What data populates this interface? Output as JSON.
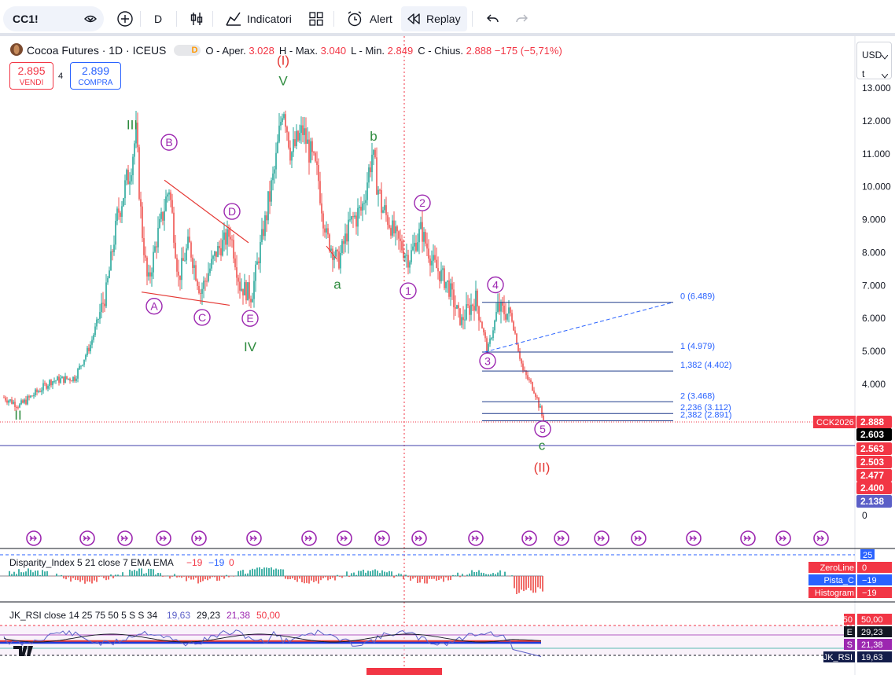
{
  "toolbar": {
    "symbol": "CC1!",
    "interval": "D",
    "indicators_label": "Indicatori",
    "alert_label": "Alert",
    "replay_label": "Replay",
    "colors": {
      "accent": "#2962ff",
      "border": "#e0e3eb"
    }
  },
  "legend": {
    "title": "Cocoa Futures · 1D · ICEUS",
    "badge": "D",
    "open_label": "O - Aper.",
    "open_value": "3.028",
    "high_label": "H - Max.",
    "high_value": "3.040",
    "low_label": "L - Min.",
    "low_value": "2.849",
    "close_label": "C - Chius.",
    "close_value": "2.888",
    "change": "−175 (−5,71%)"
  },
  "trade": {
    "sell_price": "2.895",
    "sell_label": "VENDI",
    "spread": "4",
    "buy_price": "2.899",
    "buy_label": "COMPRA"
  },
  "axis": {
    "currency": "USD",
    "unit": "t",
    "ticks": [
      {
        "label": "13.000",
        "value": 13000
      },
      {
        "label": "12.000",
        "value": 12000
      },
      {
        "label": "11.000",
        "value": 11000
      },
      {
        "label": "10.000",
        "value": 10000
      },
      {
        "label": "9.000",
        "value": 9000
      },
      {
        "label": "8.000",
        "value": 8000
      },
      {
        "label": "7.000",
        "value": 7000
      },
      {
        "label": "6.000",
        "value": 6000
      },
      {
        "label": "5.000",
        "value": 5000
      },
      {
        "label": "4.000",
        "value": 4000
      },
      {
        "label": "0",
        "value": 0
      }
    ],
    "price_tags": [
      {
        "label": "2.888",
        "value": 2888,
        "color": "#f23645",
        "name": "CCK2026"
      },
      {
        "label": "2.603",
        "value": 2603,
        "color": "#000000"
      },
      {
        "label": "2.563",
        "value": 2510,
        "color": "#f23645"
      },
      {
        "label": "2.503",
        "value": 2430,
        "color": "#f23645"
      },
      {
        "label": "2.477",
        "value": 2345,
        "color": "#f23645"
      },
      {
        "label": "2.400",
        "value": 2260,
        "color": "#f23645"
      },
      {
        "label": "2.138",
        "value": 2170,
        "color": "#5b5fc7"
      }
    ]
  },
  "chart_data": {
    "type": "candlestick",
    "y_range": [
      0,
      13000
    ],
    "close_series": [
      {
        "t": 0,
        "v": 3600
      },
      {
        "t": 20,
        "v": 3350
      },
      {
        "t": 60,
        "v": 4100
      },
      {
        "t": 90,
        "v": 4200
      },
      {
        "t": 110,
        "v": 5200
      },
      {
        "t": 130,
        "v": 6800
      },
      {
        "t": 145,
        "v": 9200
      },
      {
        "t": 160,
        "v": 10500
      },
      {
        "t": 168,
        "v": 11600
      },
      {
        "t": 175,
        "v": 8800
      },
      {
        "t": 183,
        "v": 7000
      },
      {
        "t": 195,
        "v": 8500
      },
      {
        "t": 210,
        "v": 10000
      },
      {
        "t": 222,
        "v": 7200
      },
      {
        "t": 235,
        "v": 8300
      },
      {
        "t": 250,
        "v": 6800
      },
      {
        "t": 270,
        "v": 8000
      },
      {
        "t": 288,
        "v": 8600
      },
      {
        "t": 300,
        "v": 7000
      },
      {
        "t": 315,
        "v": 6700
      },
      {
        "t": 330,
        "v": 8700
      },
      {
        "t": 345,
        "v": 10600
      },
      {
        "t": 355,
        "v": 12600
      },
      {
        "t": 365,
        "v": 11000
      },
      {
        "t": 380,
        "v": 11700
      },
      {
        "t": 400,
        "v": 10200
      },
      {
        "t": 410,
        "v": 8500
      },
      {
        "t": 425,
        "v": 7700
      },
      {
        "t": 440,
        "v": 8900
      },
      {
        "t": 455,
        "v": 9300
      },
      {
        "t": 468,
        "v": 11000
      },
      {
        "t": 480,
        "v": 9400
      },
      {
        "t": 500,
        "v": 8400
      },
      {
        "t": 515,
        "v": 7800
      },
      {
        "t": 530,
        "v": 8700
      },
      {
        "t": 545,
        "v": 7700
      },
      {
        "t": 565,
        "v": 7000
      },
      {
        "t": 580,
        "v": 5900
      },
      {
        "t": 600,
        "v": 6600
      },
      {
        "t": 615,
        "v": 5000
      },
      {
        "t": 628,
        "v": 6300
      },
      {
        "t": 645,
        "v": 6100
      },
      {
        "t": 660,
        "v": 4400
      },
      {
        "t": 675,
        "v": 3800
      },
      {
        "t": 686,
        "v": 2888
      }
    ],
    "wave_labels": [
      {
        "text": "II",
        "t": 18,
        "v": 2930,
        "color": "#2e8b3e"
      },
      {
        "text": "III",
        "t": 163,
        "v": 11750,
        "color": "#2e8b3e"
      },
      {
        "text": "IV",
        "t": 313,
        "v": 5000,
        "color": "#2e8b3e"
      },
      {
        "text": "V",
        "t": 355,
        "v": 13080,
        "color": "#2e8b3e"
      },
      {
        "text": "(I)",
        "t": 355,
        "v": 13700,
        "color": "#e53935"
      },
      {
        "text": "a",
        "t": 424,
        "v": 6900,
        "color": "#2e8b3e"
      },
      {
        "text": "b",
        "t": 470,
        "v": 11400,
        "color": "#2e8b3e"
      },
      {
        "text": "c",
        "t": 684,
        "v": 2010,
        "color": "#2e8b3e"
      },
      {
        "text": "(II)",
        "t": 684,
        "v": 1340,
        "color": "#e53935"
      }
    ],
    "circle_labels": [
      {
        "text": "A",
        "t": 191,
        "v": 6370,
        "color": "#9c27b0"
      },
      {
        "text": "B",
        "t": 210,
        "v": 11350,
        "color": "#9c27b0"
      },
      {
        "text": "C",
        "t": 252,
        "v": 6030,
        "color": "#9c27b0"
      },
      {
        "text": "D",
        "t": 290,
        "v": 9250,
        "color": "#9c27b0"
      },
      {
        "text": "E",
        "t": 313,
        "v": 6000,
        "color": "#9c27b0"
      },
      {
        "text": "1",
        "t": 514,
        "v": 6840,
        "color": "#9c27b0"
      },
      {
        "text": "2",
        "t": 532,
        "v": 9510,
        "color": "#9c27b0"
      },
      {
        "text": "3",
        "t": 615,
        "v": 4710,
        "color": "#9c27b0"
      },
      {
        "text": "4",
        "t": 625,
        "v": 7020,
        "color": "#9c27b0"
      },
      {
        "text": "5",
        "t": 685,
        "v": 2640,
        "color": "#9c27b0"
      }
    ],
    "fib_levels": [
      {
        "label": "0 (6.489)",
        "value": 6489
      },
      {
        "label": "1 (4.979)",
        "value": 4979
      },
      {
        "label": "1,382 (4.402)",
        "value": 4402
      },
      {
        "label": "2 (3.468)",
        "value": 3468
      },
      {
        "label": "2,236 (3.112)",
        "value": 3112
      },
      {
        "label": "2,382 (2.891)",
        "value": 2891
      }
    ],
    "event_markers": [
      43,
      111,
      159,
      208,
      253,
      323,
      393,
      438,
      486,
      533,
      605,
      673,
      714,
      765,
      812,
      882,
      951,
      996,
      1044
    ]
  },
  "indicators": {
    "disparity": {
      "title": "Disparity_Index 5 21 close 7 EMA EMA",
      "val1": "−19",
      "val2": "−19",
      "val3": "0",
      "top_tag": "25",
      "tags": [
        {
          "name": "ZeroLine",
          "value": "0",
          "color": "#f23645"
        },
        {
          "name": "Pista_C",
          "value": "−19",
          "color": "#2962ff"
        },
        {
          "name": "Histogram",
          "value": "−19",
          "color": "#f23645"
        }
      ]
    },
    "rsi": {
      "title": "JK_RSI close 14 25 75 50 5 S S 34",
      "v1": "19,63",
      "v2": "29,23",
      "v3": "21,38",
      "v4": "50,00",
      "tags": [
        {
          "name": "50",
          "value": "50,00",
          "color": "#f23645"
        },
        {
          "name": "E",
          "value": "29,23",
          "color": "#131722"
        },
        {
          "name": "S",
          "value": "21,38",
          "color": "#9c27b0"
        },
        {
          "name": "JK_RSI",
          "value": "19,63",
          "color": "#131d4a"
        }
      ]
    }
  }
}
